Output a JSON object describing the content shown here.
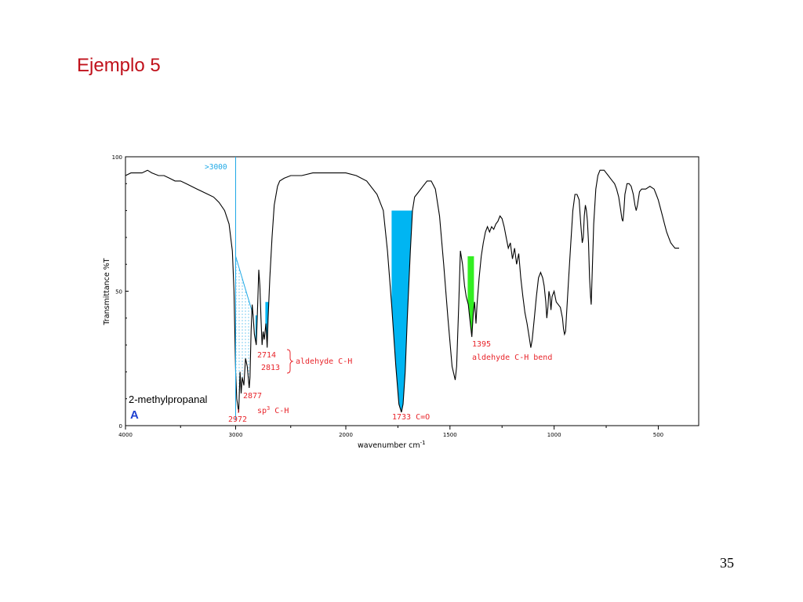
{
  "slide": {
    "title": "Ejemplo 5",
    "page_number": "35"
  },
  "colors": {
    "title": "#c0111b",
    "annotation": "#e8252b",
    "highlight_blue": "#00b5f2",
    "highlight_green": "#33ee22",
    "line_blue": "#1fa9e6",
    "compound_label": "#1d3fd0"
  },
  "chart_data": {
    "type": "line",
    "xlabel": "wavenumber cm",
    "xlabel_superscript": "-1",
    "ylabel": "Transmittance %T",
    "xlim": [
      4000,
      400
    ],
    "ylim": [
      0,
      100
    ],
    "x_ticks": [
      4000,
      3000,
      2000,
      1500,
      1000,
      500
    ],
    "x_tick_labels": [
      "4000",
      "3000",
      "2000",
      "1500",
      "1000",
      "500"
    ],
    "y_ticks": [
      0,
      50,
      100
    ],
    "y_tick_labels": [
      "0",
      "50",
      "100"
    ],
    "axis_breaks": "scale changes at 2000 cm-1",
    "compound": {
      "name": "2-methylpropanal",
      "marker": "A"
    },
    "reference_line": {
      "x": 3000,
      "label": ">3000"
    },
    "series": [
      {
        "points": [
          [
            4000,
            93
          ],
          [
            3950,
            94
          ],
          [
            3900,
            94
          ],
          [
            3850,
            94
          ],
          [
            3800,
            95
          ],
          [
            3760,
            94
          ],
          [
            3700,
            93
          ],
          [
            3650,
            93
          ],
          [
            3600,
            92
          ],
          [
            3550,
            91
          ],
          [
            3500,
            91
          ],
          [
            3450,
            90
          ],
          [
            3400,
            89
          ],
          [
            3350,
            88
          ],
          [
            3300,
            87
          ],
          [
            3250,
            86
          ],
          [
            3200,
            85
          ],
          [
            3150,
            83
          ],
          [
            3100,
            80
          ],
          [
            3060,
            75
          ],
          [
            3030,
            65
          ],
          [
            3015,
            50
          ],
          [
            3000,
            20
          ],
          [
            2990,
            10
          ],
          [
            2972,
            5
          ],
          [
            2960,
            20
          ],
          [
            2950,
            12
          ],
          [
            2940,
            18
          ],
          [
            2925,
            15
          ],
          [
            2910,
            25
          ],
          [
            2895,
            22
          ],
          [
            2877,
            14
          ],
          [
            2870,
            18
          ],
          [
            2860,
            35
          ],
          [
            2850,
            45
          ],
          [
            2840,
            40
          ],
          [
            2830,
            34
          ],
          [
            2813,
            30
          ],
          [
            2800,
            45
          ],
          [
            2790,
            58
          ],
          [
            2780,
            52
          ],
          [
            2770,
            40
          ],
          [
            2760,
            30
          ],
          [
            2750,
            35
          ],
          [
            2740,
            32
          ],
          [
            2725,
            38
          ],
          [
            2714,
            29
          ],
          [
            2705,
            40
          ],
          [
            2690,
            55
          ],
          [
            2670,
            70
          ],
          [
            2650,
            82
          ],
          [
            2620,
            89
          ],
          [
            2600,
            91
          ],
          [
            2560,
            92
          ],
          [
            2500,
            93
          ],
          [
            2400,
            93
          ],
          [
            2300,
            94
          ],
          [
            2200,
            94
          ],
          [
            2100,
            94
          ],
          [
            2000,
            94
          ],
          [
            1950,
            93
          ],
          [
            1900,
            91
          ],
          [
            1850,
            86
          ],
          [
            1820,
            80
          ],
          [
            1800,
            65
          ],
          [
            1780,
            45
          ],
          [
            1760,
            22
          ],
          [
            1745,
            8
          ],
          [
            1733,
            5
          ],
          [
            1725,
            8
          ],
          [
            1715,
            20
          ],
          [
            1705,
            40
          ],
          [
            1690,
            65
          ],
          [
            1680,
            80
          ],
          [
            1670,
            85
          ],
          [
            1650,
            87
          ],
          [
            1630,
            89
          ],
          [
            1610,
            91
          ],
          [
            1590,
            91
          ],
          [
            1570,
            88
          ],
          [
            1550,
            78
          ],
          [
            1530,
            60
          ],
          [
            1510,
            40
          ],
          [
            1490,
            22
          ],
          [
            1475,
            17
          ],
          [
            1468,
            22
          ],
          [
            1458,
            45
          ],
          [
            1450,
            65
          ],
          [
            1440,
            60
          ],
          [
            1430,
            52
          ],
          [
            1422,
            48
          ],
          [
            1412,
            45
          ],
          [
            1405,
            40
          ],
          [
            1395,
            33
          ],
          [
            1388,
            42
          ],
          [
            1382,
            46
          ],
          [
            1375,
            38
          ],
          [
            1370,
            45
          ],
          [
            1360,
            55
          ],
          [
            1350,
            63
          ],
          [
            1340,
            68
          ],
          [
            1330,
            72
          ],
          [
            1320,
            74
          ],
          [
            1310,
            72
          ],
          [
            1300,
            74
          ],
          [
            1290,
            73
          ],
          [
            1280,
            75
          ],
          [
            1270,
            76
          ],
          [
            1260,
            78
          ],
          [
            1250,
            77
          ],
          [
            1240,
            74
          ],
          [
            1230,
            70
          ],
          [
            1220,
            66
          ],
          [
            1210,
            68
          ],
          [
            1200,
            62
          ],
          [
            1190,
            66
          ],
          [
            1180,
            60
          ],
          [
            1170,
            64
          ],
          [
            1160,
            55
          ],
          [
            1150,
            48
          ],
          [
            1140,
            42
          ],
          [
            1130,
            38
          ],
          [
            1120,
            33
          ],
          [
            1112,
            29
          ],
          [
            1105,
            32
          ],
          [
            1095,
            40
          ],
          [
            1085,
            48
          ],
          [
            1075,
            55
          ],
          [
            1065,
            57
          ],
          [
            1055,
            55
          ],
          [
            1048,
            52
          ],
          [
            1040,
            46
          ],
          [
            1035,
            40
          ],
          [
            1030,
            44
          ],
          [
            1025,
            50
          ],
          [
            1020,
            48
          ],
          [
            1015,
            43
          ],
          [
            1010,
            48
          ],
          [
            1000,
            50
          ],
          [
            990,
            46
          ],
          [
            980,
            45
          ],
          [
            970,
            44
          ],
          [
            960,
            40
          ],
          [
            955,
            36
          ],
          [
            950,
            34
          ],
          [
            945,
            35
          ],
          [
            940,
            42
          ],
          [
            930,
            55
          ],
          [
            920,
            68
          ],
          [
            910,
            80
          ],
          [
            900,
            86
          ],
          [
            890,
            86
          ],
          [
            880,
            84
          ],
          [
            872,
            75
          ],
          [
            865,
            68
          ],
          [
            860,
            70
          ],
          [
            855,
            78
          ],
          [
            850,
            82
          ],
          [
            845,
            80
          ],
          [
            840,
            76
          ],
          [
            835,
            68
          ],
          [
            830,
            55
          ],
          [
            825,
            48
          ],
          [
            822,
            45
          ],
          [
            818,
            55
          ],
          [
            810,
            75
          ],
          [
            800,
            88
          ],
          [
            790,
            93
          ],
          [
            780,
            95
          ],
          [
            770,
            95
          ],
          [
            760,
            95
          ],
          [
            750,
            94
          ],
          [
            740,
            93
          ],
          [
            730,
            92
          ],
          [
            720,
            91
          ],
          [
            710,
            90
          ],
          [
            700,
            88
          ],
          [
            690,
            85
          ],
          [
            680,
            80
          ],
          [
            675,
            77
          ],
          [
            670,
            76
          ],
          [
            665,
            80
          ],
          [
            660,
            86
          ],
          [
            650,
            90
          ],
          [
            640,
            90
          ],
          [
            630,
            89
          ],
          [
            620,
            86
          ],
          [
            612,
            82
          ],
          [
            606,
            80
          ],
          [
            600,
            82
          ],
          [
            590,
            87
          ],
          [
            580,
            88
          ],
          [
            560,
            88
          ],
          [
            540,
            89
          ],
          [
            520,
            88
          ],
          [
            510,
            86
          ],
          [
            500,
            84
          ],
          [
            490,
            81
          ],
          [
            480,
            78
          ],
          [
            470,
            75
          ],
          [
            460,
            72
          ],
          [
            450,
            70
          ],
          [
            440,
            68
          ],
          [
            430,
            67
          ],
          [
            420,
            66
          ],
          [
            410,
            66
          ],
          [
            400,
            66
          ]
        ]
      }
    ],
    "annotations": [
      {
        "text": ">3000",
        "color": "blue"
      },
      {
        "text": "2714",
        "color": "red"
      },
      {
        "text": "2813",
        "color": "red"
      },
      {
        "text": "aldehyde C-H",
        "color": "red"
      },
      {
        "text": "2877",
        "color": "red"
      },
      {
        "text": "2972",
        "color": "red"
      },
      {
        "text": "sp3 C-H",
        "color": "red"
      },
      {
        "text": "1733 C=O",
        "color": "red"
      },
      {
        "text": "1395",
        "color": "red"
      },
      {
        "text": "aldehyde C-H bend",
        "color": "red"
      }
    ],
    "highlights": [
      {
        "name": "carbonyl",
        "from": 1780,
        "to": 1660,
        "top": 80,
        "color": "blue"
      },
      {
        "name": "aldehyde-ch-2813",
        "from": 2820,
        "to": 2800,
        "top": 41,
        "color": "blue"
      },
      {
        "name": "aldehyde-ch-2714",
        "from": 2730,
        "to": 2700,
        "top": 46,
        "color": "blue"
      },
      {
        "name": "aldehyde-bend",
        "from": 1415,
        "to": 1385,
        "top": 63,
        "color": "green"
      }
    ]
  }
}
